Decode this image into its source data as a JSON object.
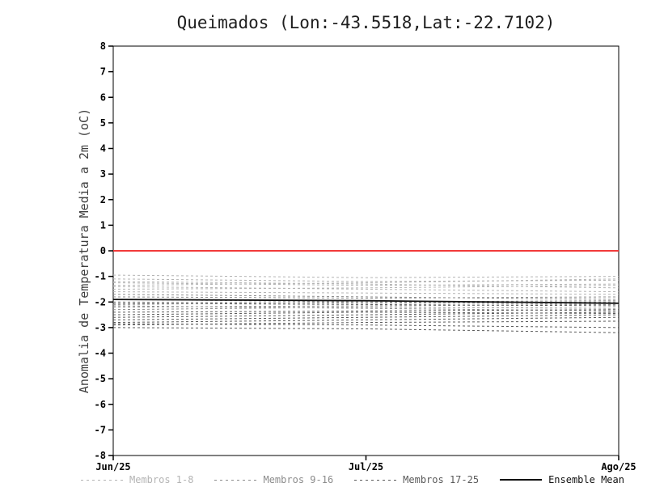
{
  "chart_data": {
    "type": "line",
    "title": "Queimados (Lon:-43.5518,Lat:-22.7102)",
    "ylabel": "Anomalia de Temperatura Media a 2m (oC)",
    "x": [
      "Jun/25",
      "Jul/25",
      "Ago/25"
    ],
    "ylim": [
      -8,
      8
    ],
    "yticks": [
      8,
      7,
      6,
      5,
      4,
      3,
      2,
      1,
      0,
      -1,
      -2,
      -3,
      -4,
      -5,
      -6,
      -7,
      -8
    ],
    "grid": false,
    "zero_line": {
      "value": 0,
      "color": "#f23a3a"
    },
    "groups": [
      {
        "name": "Membros 1-8",
        "color": "#b4b4b4",
        "members": [
          [
            -0.95,
            -1.05,
            -1.0
          ],
          [
            -1.1,
            -1.2,
            -1.15
          ],
          [
            -1.25,
            -1.35,
            -1.3
          ],
          [
            -1.2,
            -1.3,
            -1.45
          ],
          [
            -1.4,
            -1.5,
            -1.6
          ],
          [
            -1.5,
            -1.45,
            -1.35
          ],
          [
            -1.6,
            -1.65,
            -1.7
          ],
          [
            -1.35,
            -1.25,
            -1.1
          ]
        ]
      },
      {
        "name": "Membros 9-16",
        "color": "#8c8c8c",
        "members": [
          [
            -1.7,
            -1.8,
            -1.9
          ],
          [
            -1.8,
            -1.85,
            -1.8
          ],
          [
            -1.9,
            -2.0,
            -2.1
          ],
          [
            -2.0,
            -2.05,
            -2.0
          ],
          [
            -2.1,
            -2.0,
            -1.95
          ],
          [
            -2.2,
            -2.15,
            -2.1
          ],
          [
            -2.3,
            -2.2,
            -2.25
          ],
          [
            -2.15,
            -2.25,
            -2.35
          ]
        ]
      },
      {
        "name": "Membros 17-25",
        "color": "#5a5a5a",
        "members": [
          [
            -2.4,
            -2.35,
            -2.3
          ],
          [
            -2.5,
            -2.4,
            -2.45
          ],
          [
            -2.6,
            -2.5,
            -2.4
          ],
          [
            -2.7,
            -2.6,
            -2.5
          ],
          [
            -2.8,
            -2.7,
            -2.6
          ],
          [
            -2.9,
            -2.8,
            -2.75
          ],
          [
            -3.0,
            -3.05,
            -3.2
          ],
          [
            -2.85,
            -2.9,
            -3.0
          ],
          [
            -2.05,
            -2.1,
            -2.15
          ]
        ]
      }
    ],
    "mean": {
      "name": "Ensemble Mean",
      "color": "#111111",
      "values": [
        -1.9,
        -1.95,
        -2.05
      ]
    },
    "legend": [
      {
        "label": "Membros 1-8",
        "color": "#b4b4b4",
        "dash": true
      },
      {
        "label": "Membros 9-16",
        "color": "#8c8c8c",
        "dash": true
      },
      {
        "label": "Membros 17-25",
        "color": "#5a5a5a",
        "dash": true
      },
      {
        "label": "Ensemble Mean",
        "color": "#111111",
        "dash": false
      }
    ]
  }
}
